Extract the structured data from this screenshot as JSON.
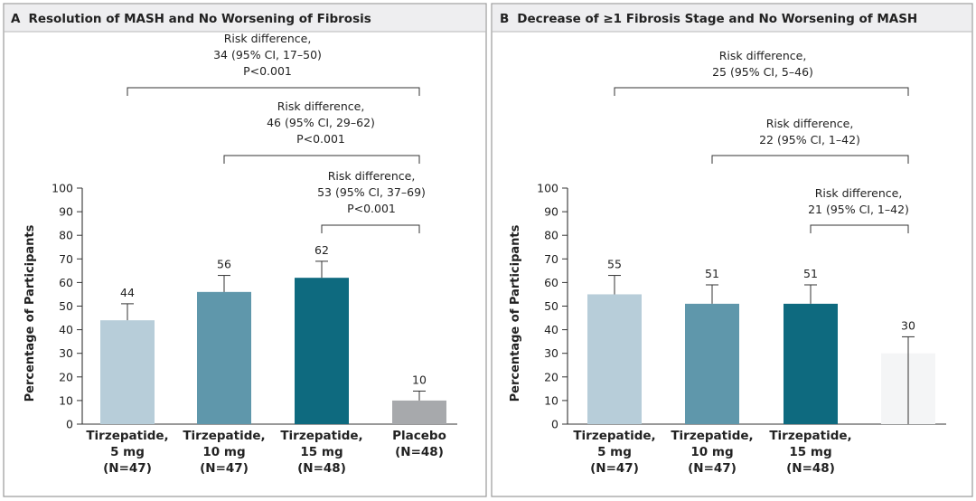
{
  "chart_data": [
    {
      "type": "bar",
      "panel_letter": "A",
      "title": "Resolution of MASH and No Worsening of Fibrosis",
      "ylabel": "Percentage of Participants",
      "ylim": [
        0,
        100
      ],
      "yticks": [
        0,
        10,
        20,
        30,
        40,
        50,
        60,
        70,
        80,
        90,
        100
      ],
      "categories": [
        {
          "name": "Tirzepatide,",
          "dose": "5 mg",
          "n": "(N=47)"
        },
        {
          "name": "Tirzepatide,",
          "dose": "10 mg",
          "n": "(N=47)"
        },
        {
          "name": "Tirzepatide,",
          "dose": "15 mg",
          "n": "(N=48)"
        },
        {
          "name": "Placebo",
          "dose": "(N=48)",
          "n": ""
        }
      ],
      "values": [
        44,
        56,
        62,
        10
      ],
      "value_labels": [
        "44",
        "56",
        "62",
        "10"
      ],
      "error_upper": [
        51,
        63,
        69,
        14
      ],
      "colors": [
        "#b7cdd9",
        "#5f97ab",
        "#0e6a7f",
        "#a7a9ac"
      ],
      "comparisons": [
        {
          "from": 0,
          "to": 3,
          "line1": "Risk difference,",
          "line2": "34 (95% CI, 17–50)",
          "line3": "P<0.001"
        },
        {
          "from": 1,
          "to": 3,
          "line1": "Risk difference,",
          "line2": "46 (95% CI, 29–62)",
          "line3": "P<0.001"
        },
        {
          "from": 2,
          "to": 3,
          "line1": "Risk difference,",
          "line2": "53 (95% CI, 37–69)",
          "line3": "P<0.001"
        }
      ]
    },
    {
      "type": "bar",
      "panel_letter": "B",
      "title": "Decrease of ≥1 Fibrosis Stage and No Worsening of MASH",
      "ylabel": "Percentage of Participants",
      "ylim": [
        0,
        100
      ],
      "yticks": [
        0,
        10,
        20,
        30,
        40,
        50,
        60,
        70,
        80,
        90,
        100
      ],
      "categories": [
        {
          "name": "Tirzepatide,",
          "dose": "5 mg",
          "n": "(N=47)"
        },
        {
          "name": "Tirzepatide,",
          "dose": "10 mg",
          "n": "(N=47)"
        },
        {
          "name": "Tirzepatide,",
          "dose": "15 mg",
          "n": "(N=48)"
        },
        {
          "name": "",
          "dose": "",
          "n": ""
        }
      ],
      "values": [
        55,
        51,
        51,
        30
      ],
      "value_labels": [
        "55",
        "51",
        "51",
        "30"
      ],
      "error_upper": [
        63,
        59,
        59,
        37
      ],
      "colors": [
        "#b7cdd9",
        "#5f97ab",
        "#0e6a7f",
        "#f4f5f6"
      ],
      "comparisons": [
        {
          "from": 0,
          "to": 3,
          "line1": "Risk difference,",
          "line2": "25 (95% CI, 5–46)",
          "line3": ""
        },
        {
          "from": 1,
          "to": 3,
          "line1": "Risk difference,",
          "line2": "22 (95% CI, 1–42)",
          "line3": ""
        },
        {
          "from": 2,
          "to": 3,
          "line1": "Risk difference,",
          "line2": "21 (95% CI, 1–42)",
          "line3": ""
        }
      ]
    }
  ]
}
